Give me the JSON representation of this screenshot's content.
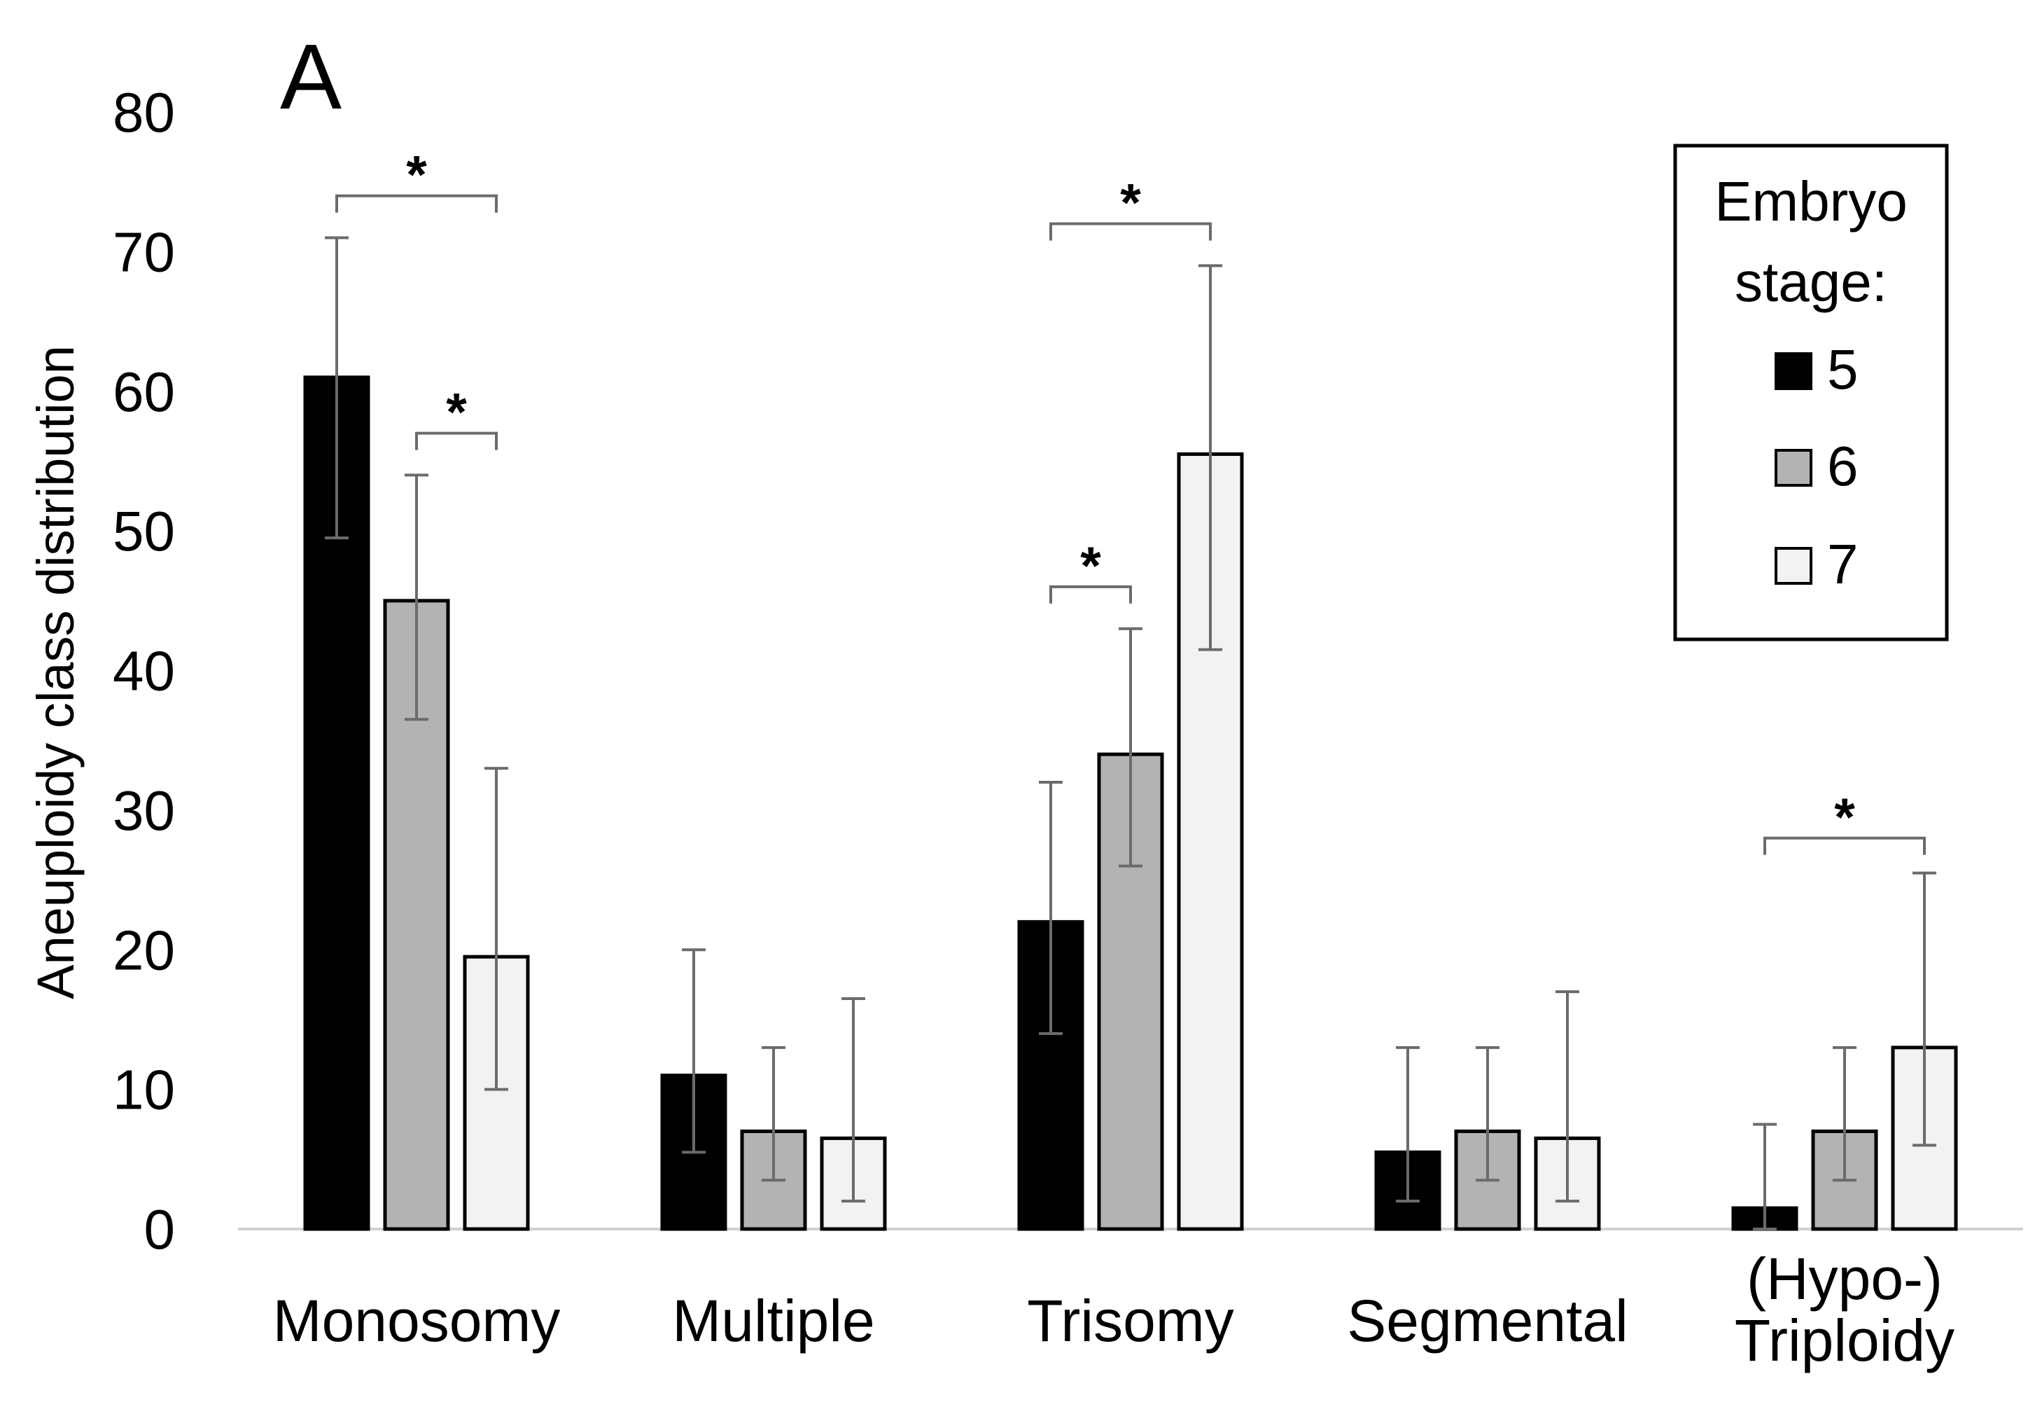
{
  "chart_data": {
    "type": "bar",
    "panel_label": "A",
    "ylabel": "Aneuploidy class distribution",
    "xlabel": "",
    "ylim": [
      0,
      80
    ],
    "yticks": [
      "0",
      "10",
      "20",
      "30",
      "40",
      "50",
      "60",
      "70",
      "80"
    ],
    "categories": [
      "Monosomy",
      "Multiple",
      "Trisomy",
      "Segmental",
      "(Hypo-)\nTriploidy"
    ],
    "legend": {
      "title_line1": "Embryo",
      "title_line2": "stage:",
      "position": "top-right"
    },
    "series": [
      {
        "name": "5",
        "color": "#000000",
        "values": [
          61,
          11,
          22,
          5.5,
          1.5
        ],
        "err_low": [
          49.5,
          5.5,
          14,
          2,
          0
        ],
        "err_high": [
          71,
          20,
          32,
          13,
          7.5
        ]
      },
      {
        "name": "6",
        "color": "#b3b3b3",
        "values": [
          45,
          7,
          34,
          7,
          7
        ],
        "err_low": [
          36.5,
          3.5,
          26,
          3.5,
          3.5
        ],
        "err_high": [
          54,
          13,
          43,
          13,
          13
        ]
      },
      {
        "name": "7",
        "color": "#f2f2f2",
        "values": [
          19.5,
          6.5,
          55.5,
          6.5,
          13
        ],
        "err_low": [
          10,
          2,
          41.5,
          2,
          6
        ],
        "err_high": [
          33,
          16.5,
          69,
          17,
          25.5
        ]
      }
    ],
    "significance": [
      {
        "category": 0,
        "from_series": 0,
        "to_series": 2,
        "y": 74,
        "label": "*"
      },
      {
        "category": 0,
        "from_series": 1,
        "to_series": 2,
        "y": 57,
        "label": "*"
      },
      {
        "category": 2,
        "from_series": 0,
        "to_series": 2,
        "y": 72,
        "label": "*"
      },
      {
        "category": 2,
        "from_series": 0,
        "to_series": 1,
        "y": 46,
        "label": "*"
      },
      {
        "category": 4,
        "from_series": 0,
        "to_series": 2,
        "y": 28,
        "label": "*"
      }
    ]
  }
}
